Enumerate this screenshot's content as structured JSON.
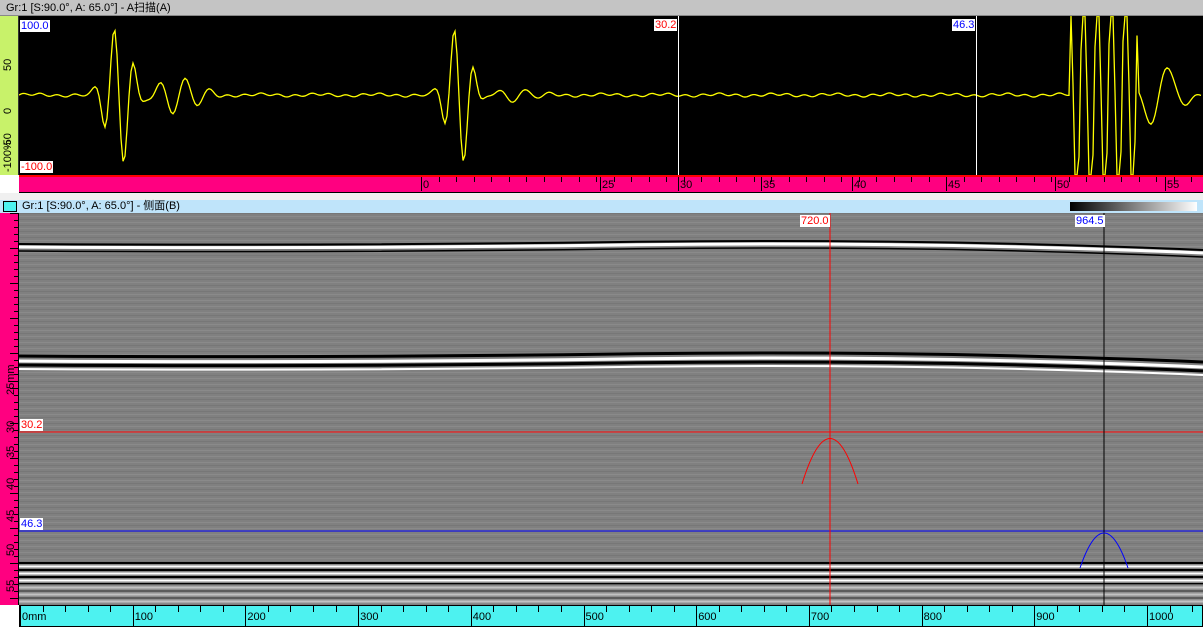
{
  "ascan": {
    "title": "Gr:1 [S:90.0°, A: 65.0°] - A扫描(A)",
    "amp_max": "100.0",
    "amp_min": "-100.0",
    "amp_axis": [
      "50",
      "0",
      "-50",
      "-100%"
    ],
    "cursor_ref": "30.2",
    "cursor_meas": "46.3",
    "depth_ticks": [
      "0",
      "25",
      "30",
      "35",
      "40",
      "45",
      "50",
      "55"
    ],
    "trace_color": "#ffff00"
  },
  "bscan": {
    "title": "Gr:1 [S:90.0°, A: 65.0°] - 侧面(B)",
    "cursor_ref_x": "720.0",
    "cursor_meas_x": "964.5",
    "cursor_ref_depth": "30.2",
    "cursor_meas_depth": "46.3",
    "depth_axis": [
      "25mm",
      "30",
      "35",
      "40",
      "45",
      "50",
      "55"
    ],
    "scan_ticks": [
      "0mm",
      "100",
      "200",
      "300",
      "400",
      "500",
      "600",
      "700",
      "800",
      "900",
      "1000"
    ],
    "ref_color": "#ff0000",
    "meas_color": "#0000ff",
    "palette": "grayscale"
  }
}
